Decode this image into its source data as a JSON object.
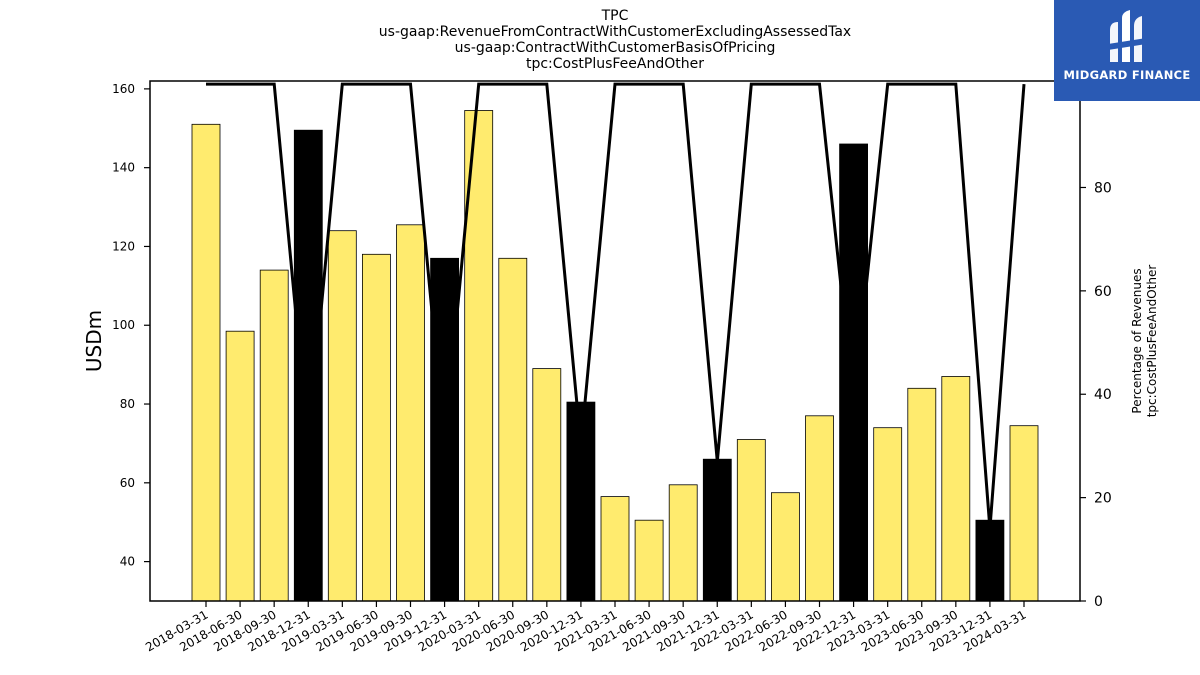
{
  "colors": {
    "bar_default": "#ffeb6e",
    "bar_highlight": "#000000",
    "line": "#000000",
    "logo_bg": "#2a5ab4"
  },
  "logo": {
    "text": "MIDGARD FINANCE",
    "icon": "midgard-logo-icon"
  },
  "chart_data": {
    "type": "bar",
    "title_lines": [
      "TPC",
      "us-gaap:RevenueFromContractWithCustomerExcludingAssessedTax",
      "us-gaap:ContractWithCustomerBasisOfPricing",
      "tpc:CostPlusFeeAndOther"
    ],
    "ylabel": "USDm",
    "y2label_lines": [
      "Percentage of Revenues",
      "tpc:CostPlusFeeAndOther"
    ],
    "ylim": [
      30,
      162
    ],
    "y2lim": [
      0,
      100.6
    ],
    "yticks": [
      40,
      60,
      80,
      100,
      120,
      140,
      160
    ],
    "y2ticks": [
      0,
      20,
      40,
      60,
      80,
      100
    ],
    "categories": [
      "2018-03-31",
      "2018-06-30",
      "2018-09-30",
      "2018-12-31",
      "2019-03-31",
      "2019-06-30",
      "2019-09-30",
      "2019-12-31",
      "2020-03-31",
      "2020-06-30",
      "2020-09-30",
      "2020-12-31",
      "2021-03-31",
      "2021-06-30",
      "2021-09-30",
      "2021-12-31",
      "2022-03-31",
      "2022-06-30",
      "2022-09-30",
      "2022-12-31",
      "2023-03-31",
      "2023-06-30",
      "2023-09-30",
      "2023-12-31",
      "2024-03-31"
    ],
    "series": [
      {
        "type": "bar",
        "values": [
          151,
          98.5,
          114,
          149.5,
          124,
          118,
          125.5,
          117,
          154.5,
          117,
          89,
          80.5,
          56.5,
          50.5,
          59.5,
          66,
          71,
          57.5,
          77,
          146,
          74,
          84,
          87,
          50.5,
          74.5
        ],
        "highlight": [
          false,
          false,
          false,
          true,
          false,
          false,
          false,
          true,
          false,
          false,
          false,
          true,
          false,
          false,
          false,
          true,
          false,
          false,
          false,
          true,
          false,
          false,
          false,
          true,
          false
        ]
      },
      {
        "type": "line",
        "axis": "right",
        "values": [
          100,
          100,
          100,
          30,
          100,
          100,
          100,
          30,
          100,
          100,
          100,
          30,
          100,
          100,
          100,
          27,
          100,
          100,
          100,
          38,
          100,
          100,
          100,
          14,
          100
        ]
      }
    ],
    "grid": false
  }
}
